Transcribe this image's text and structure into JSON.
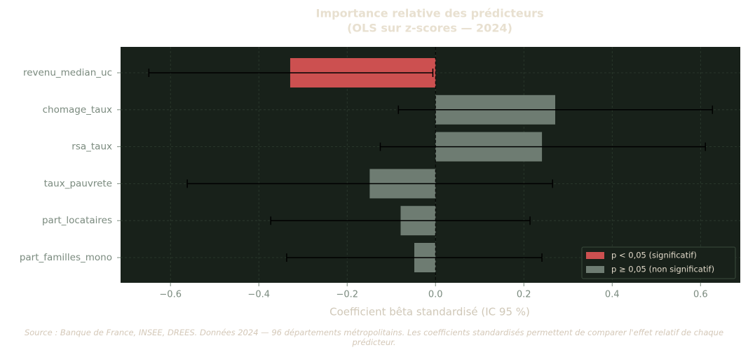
{
  "chart_data": {
    "type": "hbar_ci",
    "title": "Importance relative des prédicteurs",
    "subtitle": "(OLS sur z-scores — 2024)",
    "xlabel": "Coefficient bêta standardisé (IC 95 %)",
    "categories": [
      "revenu_median_uc",
      "chomage_taux",
      "rsa_taux",
      "taux_pauvrete",
      "part_locataires",
      "part_familles_mono"
    ],
    "values": [
      -0.329,
      0.271,
      0.241,
      -0.149,
      -0.079,
      -0.048
    ],
    "ci_low": [
      -0.649,
      -0.084,
      -0.125,
      -0.562,
      -0.373,
      -0.337
    ],
    "ci_high": [
      -0.006,
      0.627,
      0.611,
      0.265,
      0.214,
      0.241
    ],
    "significant": [
      true,
      false,
      false,
      false,
      false,
      false
    ],
    "legend": [
      {
        "label": "p < 0,05 (significatif)",
        "color": "#cc5050"
      },
      {
        "label": "p ≥ 0,05 (non significatif)",
        "color": "#6e7c72"
      }
    ],
    "legend_position": "lower right",
    "xlim": [
      -0.713,
      0.69
    ],
    "xticks": [
      {
        "value": -0.6,
        "label": "−0.6"
      },
      {
        "value": -0.4,
        "label": "−0.4"
      },
      {
        "value": -0.2,
        "label": "−0.2"
      },
      {
        "value": 0,
        "label": "0.0"
      },
      {
        "value": 0.2,
        "label": "0.2"
      },
      {
        "value": 0.4,
        "label": "0.4"
      },
      {
        "value": 0.6,
        "label": "0.6"
      }
    ],
    "grid": true,
    "source": "Source : Banque de France, INSEE, DREES. Données 2024 — 96 départements métropolitains. Les coefficients standardisés permettent de comparer l'effet relatif de chaque prédicteur."
  }
}
